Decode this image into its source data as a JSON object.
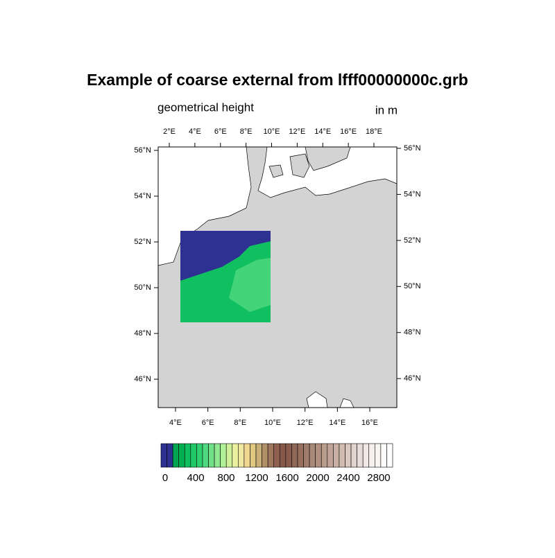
{
  "map": {
    "title": "Example of coarse external from lfff00000000c.grb",
    "left_string": "geometrical height",
    "right_string": "in m",
    "top_axis": {
      "lim": [
        1.13,
        19.79
      ],
      "ticks": [
        {
          "value": 2,
          "label": "2°E"
        },
        {
          "value": 4,
          "label": "4°E"
        },
        {
          "value": 6,
          "label": "6°E"
        },
        {
          "value": 8,
          "label": "8°E"
        },
        {
          "value": 10,
          "label": "10°E"
        },
        {
          "value": 12,
          "label": "12°E"
        },
        {
          "value": 14,
          "label": "14°E"
        },
        {
          "value": 16,
          "label": "16°E"
        },
        {
          "value": 18,
          "label": "18°E"
        }
      ]
    },
    "bottom_axis": {
      "lim": [
        2.93,
        17.67
      ],
      "ticks": [
        {
          "value": 4,
          "label": "4°E"
        },
        {
          "value": 6,
          "label": "6°E"
        },
        {
          "value": 8,
          "label": "8°E"
        },
        {
          "value": 10,
          "label": "10°E"
        },
        {
          "value": 12,
          "label": "12°E"
        },
        {
          "value": 14,
          "label": "14°E"
        },
        {
          "value": 16,
          "label": "16°E"
        }
      ]
    },
    "left_axis": {
      "lim": [
        44.76,
        56.15
      ],
      "ticks": [
        {
          "value": 46,
          "label": "46°N"
        },
        {
          "value": 48,
          "label": "48°N"
        },
        {
          "value": 50,
          "label": "50°N"
        },
        {
          "value": 52,
          "label": "52°N"
        },
        {
          "value": 54,
          "label": "54°N"
        },
        {
          "value": 56,
          "label": "56°N"
        }
      ]
    },
    "right_axis": {
      "lim": [
        44.74,
        56.06
      ],
      "ticks": [
        {
          "value": 46,
          "label": "46°N"
        },
        {
          "value": 48,
          "label": "48°N"
        },
        {
          "value": 50,
          "label": "50°N"
        },
        {
          "value": 52,
          "label": "52°N"
        },
        {
          "value": 54,
          "label": "54°N"
        },
        {
          "value": 56,
          "label": "56°N"
        }
      ]
    },
    "colorbar": {
      "lim": [
        -55,
        2982
      ],
      "ticks": [
        0,
        400,
        800,
        1200,
        1600,
        2000,
        2400,
        2800
      ],
      "colors": [
        "#2e3192",
        "#2e3192",
        "#00a651",
        "#00b050",
        "#10c060",
        "#20c868",
        "#30d070",
        "#50d880",
        "#70e088",
        "#90e890",
        "#b0f098",
        "#d0f09a",
        "#e8f0a0",
        "#f0e8a0",
        "#f0d890",
        "#e0c880",
        "#c8b078",
        "#b09068",
        "#a07860",
        "#906050",
        "#885848",
        "#8a5c50",
        "#906858",
        "#987060",
        "#a07c6c",
        "#a88878",
        "#b09080",
        "#b89c8c",
        "#c0a498",
        "#c8b0a4",
        "#d0bcb0",
        "#d8c8c0",
        "#e0d4cc",
        "#e8dcd8",
        "#f0e8e4",
        "#f4f0ee",
        "#f8f6f4",
        "#fcfbfa",
        "#ffffff"
      ]
    }
  }
}
